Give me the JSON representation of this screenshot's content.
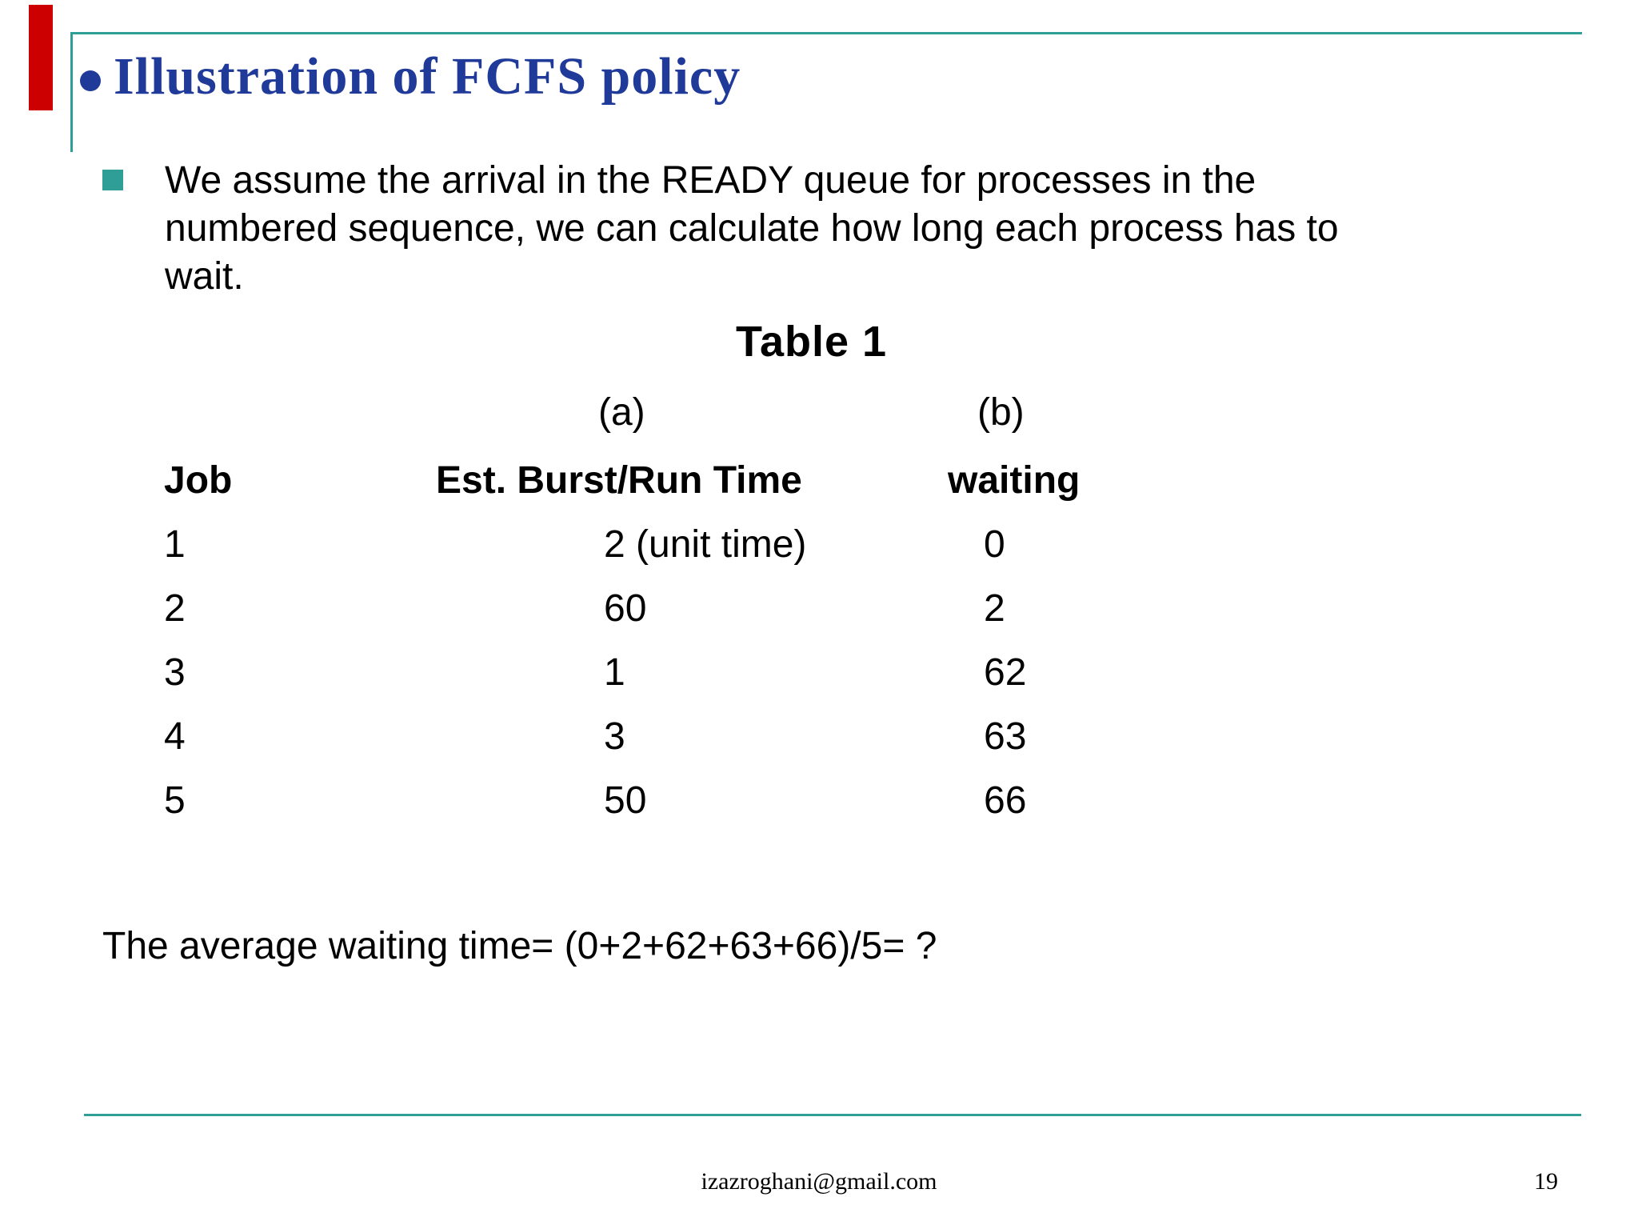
{
  "slide": {
    "title": "Illustration of FCFS policy",
    "body_text": "We assume the arrival in the READY queue for processes in the numbered sequence, we can calculate how long each process has to wait.",
    "table_caption": "Table 1",
    "column_labels": {
      "a": "(a)",
      "b": "(b)"
    },
    "table": {
      "header": {
        "job": "Job",
        "burst": "Est. Burst/Run Time",
        "waiting": "waiting"
      },
      "rows": [
        {
          "job": "1",
          "burst": "2 (unit time)",
          "waiting": "0"
        },
        {
          "job": "2",
          "burst": "60",
          "waiting": "2"
        },
        {
          "job": "3",
          "burst": "1",
          "waiting": "62"
        },
        {
          "job": "4",
          "burst": "3",
          "waiting": "63"
        },
        {
          "job": "5",
          "burst": "50",
          "waiting": "66"
        }
      ]
    },
    "average_text": "The average waiting time= (0+2+62+63+66)/5= ?",
    "footer_email": "izazroghani@gmail.com",
    "page_number": "19"
  },
  "colors": {
    "accent_teal": "#2E9E96",
    "title_blue": "#203A9A",
    "red_bar": "#CC0000"
  }
}
